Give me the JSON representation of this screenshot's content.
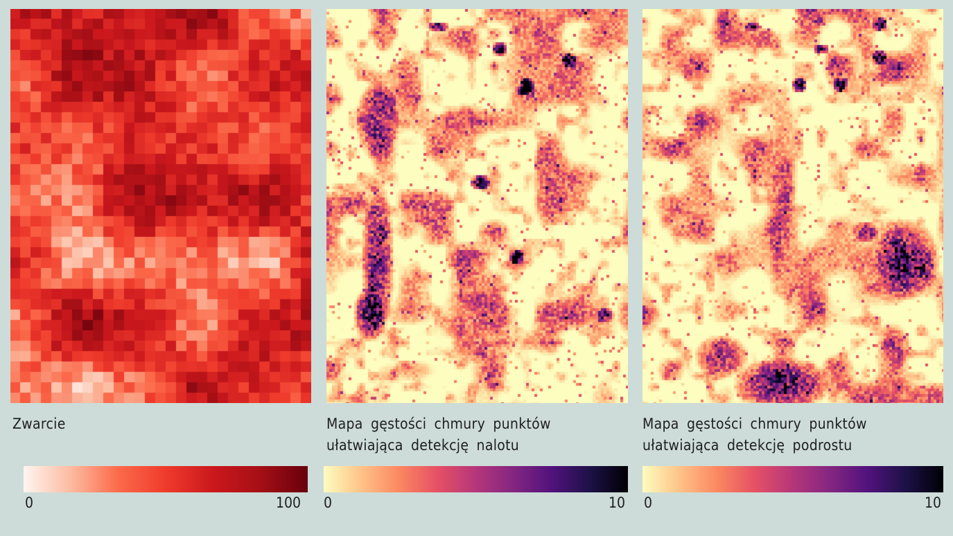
{
  "chart_data": [
    {
      "type": "heatmap",
      "title": "Zwarcie",
      "colormap": "Reds",
      "colorbar": {
        "min": 0,
        "max": 100,
        "tick_labels": [
          "0",
          "100"
        ],
        "colors": [
          "#fff5f0",
          "#fcbba1",
          "#fb6a4a",
          "#ef3b2c",
          "#cb181d",
          "#a50f15",
          "#67000d"
        ]
      }
    },
    {
      "type": "heatmap",
      "title": "Mapa gęstości chmury punktów ułatwiająca detekcję nalotu",
      "colormap": "magma_r",
      "colorbar": {
        "min": 0,
        "max": 10,
        "tick_labels": [
          "0",
          "10"
        ],
        "colors": [
          "#fcfdbf",
          "#fec287",
          "#fb8761",
          "#e55064",
          "#b5367a",
          "#832681",
          "#51127c",
          "#1d1147",
          "#000004"
        ]
      }
    },
    {
      "type": "heatmap",
      "title": "Mapa gęstości chmury punktów ułatwiająca detekcję podrostu",
      "colormap": "magma_r",
      "colorbar": {
        "min": 0,
        "max": 10,
        "tick_labels": [
          "0",
          "10"
        ],
        "colors": [
          "#fcfdbf",
          "#fec287",
          "#fb8761",
          "#e55064",
          "#b5367a",
          "#832681",
          "#51127c",
          "#1d1147",
          "#000004"
        ]
      }
    }
  ],
  "background": "#cddcd8"
}
